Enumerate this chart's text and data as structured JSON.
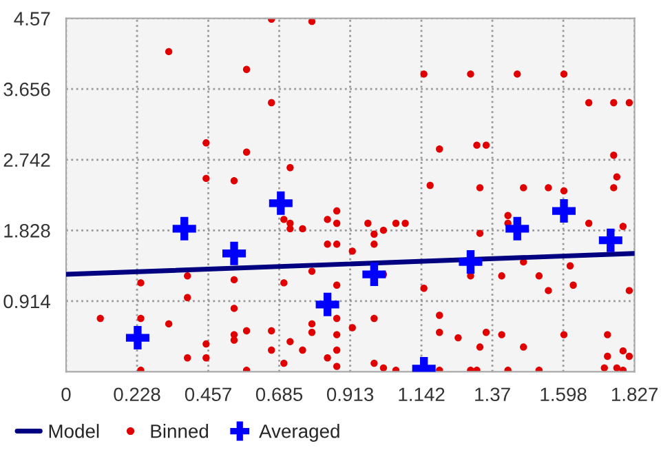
{
  "chart_data": {
    "type": "scatter",
    "xlim": [
      0,
      1.827
    ],
    "ylim": [
      0,
      4.57
    ],
    "xticks": [
      0,
      0.228,
      0.457,
      0.685,
      0.913,
      1.142,
      1.37,
      1.598,
      1.827
    ],
    "yticks": [
      0.914,
      1.828,
      2.742,
      3.656,
      4.57
    ],
    "grid": true,
    "legend": "bottom left",
    "series": [
      {
        "name": "Model",
        "type": "line",
        "color": "#000080",
        "marker": "none",
        "line_style": "solid",
        "x": [
          0,
          1.827
        ],
        "values": [
          1.26,
          1.53
        ]
      },
      {
        "name": "Binned",
        "color": "#e00000",
        "marker": "circle",
        "x": [
          0.33,
          0.58,
          0.66,
          0.79,
          0.66,
          0.45,
          0.58,
          0.72,
          0.45,
          0.54,
          1.15,
          1.3,
          1.45,
          1.6,
          1.68,
          1.76,
          1.81,
          1.2,
          1.32,
          1.35,
          1.76,
          1.77,
          1.17,
          1.33,
          1.47,
          1.55,
          1.6,
          1.76,
          0.24,
          0.39,
          0.39,
          0.11,
          0.24,
          0.33,
          0.24,
          0.39,
          0.45,
          0.45,
          0.54,
          0.54,
          0.54,
          0.54,
          0.58,
          0.58,
          0.7,
          0.72,
          0.72,
          0.76,
          0.7,
          0.66,
          0.66,
          0.72,
          0.76,
          0.7,
          0.79,
          0.79,
          0.79,
          0.84,
          0.87,
          0.87,
          0.84,
          0.87,
          0.87,
          0.87,
          0.87,
          0.84,
          0.87,
          0.87,
          0.97,
          0.99,
          0.99,
          1.02,
          1.06,
          1.09,
          0.92,
          1.02,
          1.15,
          0.92,
          0.99,
          0.99,
          1.02,
          1.06,
          1.2,
          1.2,
          1.2,
          1.26,
          1.3,
          1.32,
          1.33,
          1.35,
          1.33,
          1.4,
          1.4,
          1.42,
          1.42,
          1.42,
          1.47,
          1.47,
          1.52,
          1.52,
          1.55,
          1.6,
          1.62,
          1.63,
          1.68,
          1.79,
          1.81,
          1.74,
          1.74,
          1.73,
          1.77,
          1.79,
          1.81,
          1.79,
          1.3
        ],
        "values": [
          4.14,
          3.91,
          4.56,
          4.53,
          3.48,
          2.96,
          2.84,
          2.64,
          2.5,
          2.47,
          3.85,
          3.85,
          3.85,
          3.85,
          3.48,
          3.48,
          3.48,
          2.88,
          2.93,
          2.93,
          2.8,
          2.52,
          2.41,
          2.38,
          2.38,
          2.38,
          2.34,
          2.38,
          1.15,
          1.24,
          0.96,
          0.69,
          0.69,
          0.62,
          0.02,
          0.18,
          0.36,
          0.18,
          1.19,
          0.82,
          0.48,
          0.41,
          0.53,
          0.02,
          1.97,
          1.92,
          1.85,
          1.85,
          1.15,
          0.53,
          0.28,
          0.39,
          0.28,
          0.11,
          1.3,
          0.62,
          0.51,
          1.97,
          2.08,
          1.92,
          1.65,
          1.65,
          1.12,
          0.48,
          0.28,
          0.18,
          0.07,
          0.69,
          1.92,
          1.78,
          1.65,
          1.83,
          1.92,
          1.92,
          1.56,
          1.26,
          1.08,
          0.57,
          0.69,
          0.11,
          0.05,
          0.02,
          0.73,
          0.51,
          0.02,
          0.44,
          0.02,
          0.02,
          0.32,
          0.51,
          1.79,
          1.24,
          0.48,
          0.02,
          2.02,
          1.92,
          1.42,
          0.32,
          1.24,
          0.02,
          1.05,
          0.48,
          1.37,
          1.12,
          1.92,
          1.88,
          1.05,
          0.48,
          0.2,
          0.05,
          0.05,
          0.27,
          0.2,
          0.02,
          1.24
        ]
      },
      {
        "name": "Averaged",
        "color": "#0000ff",
        "marker": "cross",
        "x": [
          0.23,
          0.38,
          0.54,
          0.69,
          0.84,
          0.99,
          1.15,
          1.3,
          1.45,
          1.6,
          1.75
        ],
        "values": [
          0.44,
          1.85,
          1.53,
          2.18,
          0.87,
          1.26,
          0.04,
          1.42,
          1.85,
          2.08,
          1.7
        ]
      }
    ]
  }
}
